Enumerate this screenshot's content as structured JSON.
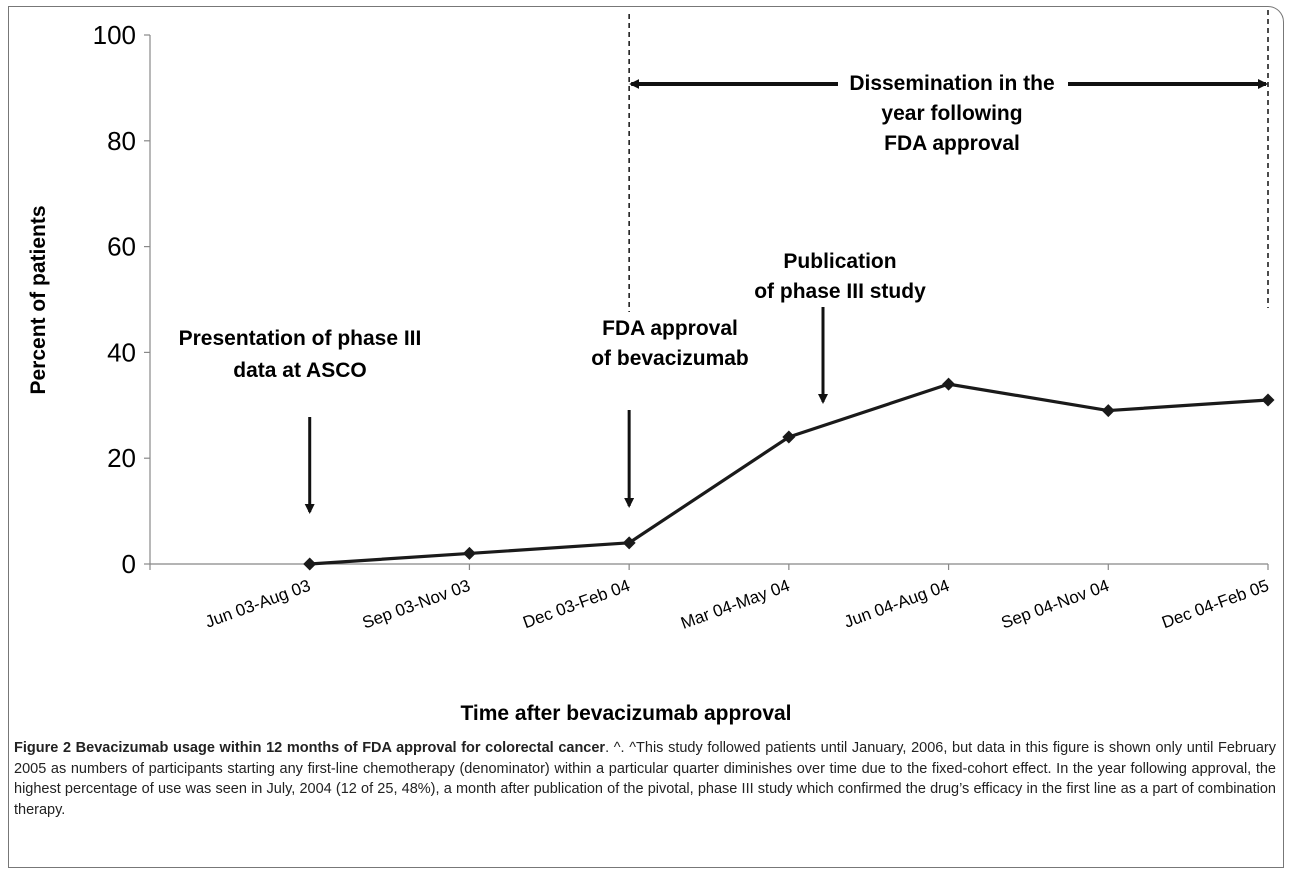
{
  "chart_data": {
    "type": "line",
    "title": "",
    "xlabel": "Time after bevacizumab approval",
    "ylabel": "Percent of patients",
    "ylim": [
      0,
      100
    ],
    "yticks": [
      0,
      20,
      40,
      60,
      80,
      100
    ],
    "grid": false,
    "categories": [
      "Jun 03-Aug 03",
      "Sep 03-Nov 03",
      "Dec 03-Feb 04",
      "Mar 04-May 04",
      "Jun 04-Aug 04",
      "Sep 04-Nov 04",
      "Dec 04-Feb 05"
    ],
    "series": [
      {
        "values": [
          0,
          2,
          4,
          24,
          34,
          29,
          31
        ],
        "color": "#1a1a1a",
        "marker": "diamond"
      }
    ],
    "annotations": [
      {
        "lines": [
          "Presentation of phase III",
          "data at ASCO"
        ],
        "points_to": "Jun 03-Aug 03"
      },
      {
        "lines": [
          "FDA approval",
          "of bevacizumab"
        ],
        "points_to": "Dec 03-Feb 04"
      },
      {
        "lines": [
          "Publication",
          "of phase III study"
        ],
        "points_to": "between Mar 04-May 04 and Jun 04-Aug 04"
      },
      {
        "lines": [
          "Dissemination in the",
          "year following",
          "FDA approval"
        ],
        "spans": [
          "Dec 03-Feb 04",
          "Dec 04-Feb 05"
        ]
      }
    ]
  },
  "caption": {
    "figure_title": "Figure 2 Bevacizumab usage within 12 months of FDA approval for colorectal cancer",
    "body": ". ^. ^This study followed patients until January, 2006, but data in this figure is shown only until February 2005 as numbers of participants starting any first-line chemotherapy (denominator) within a particular quarter diminishes over time due to the fixed-cohort effect. In the year following approval, the highest percentage of use was seen in July, 2004 (12 of 25, 48%), a month after publication of the pivotal, phase III study which confirmed the drug’s efficacy in the first line as a part of combination therapy."
  }
}
